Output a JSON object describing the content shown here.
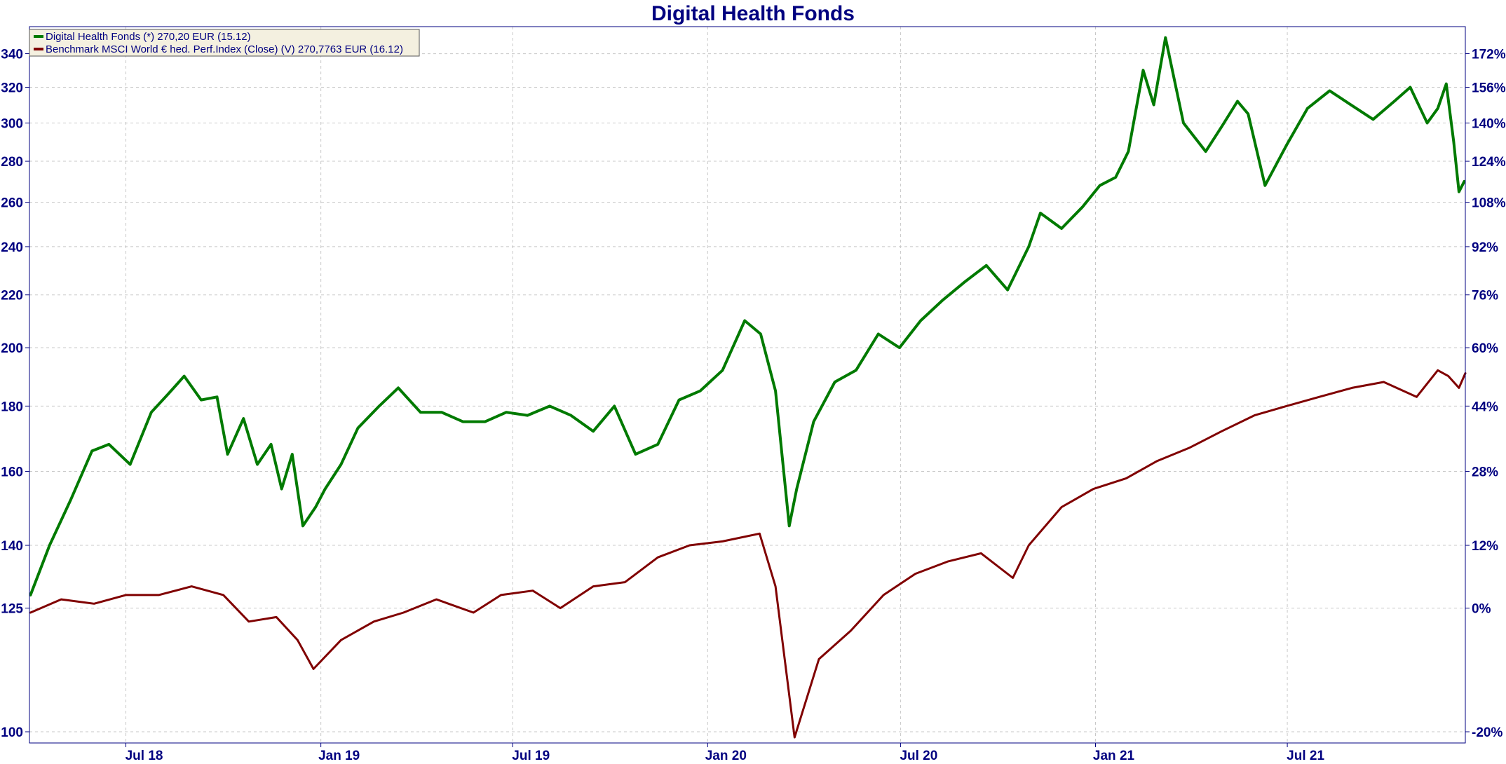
{
  "chart_data": {
    "type": "line",
    "title": "Digital Health Fonds",
    "xlabel": "",
    "ylabel": "",
    "grid": true,
    "legend_position": "top-left",
    "x_range": [
      "2018-04-01",
      "2021-12-16"
    ],
    "ylim": [
      98,
      357
    ],
    "y_scale": "log",
    "y_ticks": [
      100,
      125,
      140,
      160,
      180,
      200,
      220,
      240,
      260,
      280,
      300,
      320,
      340
    ],
    "y_tick_labels": [
      "100",
      "125",
      "140",
      "160",
      "180",
      "200",
      "220",
      "240",
      "260",
      "280",
      "300",
      "320",
      "340"
    ],
    "y2_ticks": [
      -20,
      0,
      12,
      28,
      44,
      60,
      76,
      92,
      108,
      124,
      140,
      156,
      172
    ],
    "y2_tick_labels": [
      "-20%",
      "0%",
      "12%",
      "28%",
      "44%",
      "60%",
      "76%",
      "92%",
      "108%",
      "124%",
      "140%",
      "156%",
      "172%"
    ],
    "x_ticks": [
      "2018-07-01",
      "2019-01-01",
      "2019-07-01",
      "2020-01-01",
      "2020-07-01",
      "2021-01-01",
      "2021-07-01"
    ],
    "x_tick_labels": [
      "Jul 18",
      "Jan 19",
      "Jul 19",
      "Jan 20",
      "Jul 20",
      "Jan 21",
      "Jul 21"
    ],
    "colors": {
      "fund": "#007a00",
      "benchmark": "#800000",
      "axis": "#000080",
      "grid": "#c8c8c8"
    },
    "series": [
      {
        "name": "Digital Health Fonds (*) 270,20 EUR (15.12)",
        "color": "#007a00",
        "x": [
          "2018-04-02",
          "2018-04-20",
          "2018-05-10",
          "2018-05-30",
          "2018-06-15",
          "2018-07-05",
          "2018-07-25",
          "2018-08-10",
          "2018-08-25",
          "2018-09-10",
          "2018-09-25",
          "2018-10-05",
          "2018-10-20",
          "2018-11-02",
          "2018-11-15",
          "2018-11-25",
          "2018-12-05",
          "2018-12-15",
          "2018-12-27",
          "2019-01-05",
          "2019-01-20",
          "2019-02-05",
          "2019-02-25",
          "2019-03-15",
          "2019-04-05",
          "2019-04-25",
          "2019-05-15",
          "2019-06-05",
          "2019-06-25",
          "2019-07-15",
          "2019-08-05",
          "2019-08-25",
          "2019-09-15",
          "2019-10-05",
          "2019-10-25",
          "2019-11-15",
          "2019-12-05",
          "2019-12-25",
          "2020-01-15",
          "2020-02-05",
          "2020-02-20",
          "2020-03-05",
          "2020-03-18",
          "2020-03-25",
          "2020-04-10",
          "2020-04-30",
          "2020-05-20",
          "2020-06-10",
          "2020-06-30",
          "2020-07-20",
          "2020-08-10",
          "2020-08-30",
          "2020-09-20",
          "2020-10-10",
          "2020-10-30",
          "2020-11-10",
          "2020-11-30",
          "2020-12-20",
          "2021-01-05",
          "2021-01-20",
          "2021-02-01",
          "2021-02-15",
          "2021-02-25",
          "2021-03-08",
          "2021-03-25",
          "2021-04-15",
          "2021-04-30",
          "2021-05-15",
          "2021-05-25",
          "2021-06-10",
          "2021-06-30",
          "2021-07-20",
          "2021-08-10",
          "2021-08-30",
          "2021-09-20",
          "2021-10-10",
          "2021-10-25",
          "2021-11-10",
          "2021-11-20",
          "2021-11-28",
          "2021-12-05",
          "2021-12-10",
          "2021-12-15"
        ],
        "values": [
          128,
          140,
          152,
          166,
          168,
          162,
          178,
          184,
          190,
          182,
          183,
          165,
          176,
          162,
          168,
          155,
          165,
          145,
          150,
          155,
          162,
          173,
          180,
          186,
          178,
          178,
          175,
          175,
          178,
          177,
          180,
          177,
          172,
          180,
          165,
          168,
          182,
          185,
          192,
          210,
          205,
          185,
          145,
          155,
          175,
          188,
          192,
          205,
          200,
          210,
          218,
          225,
          232,
          222,
          240,
          255,
          248,
          258,
          268,
          272,
          285,
          330,
          310,
          350,
          300,
          285,
          298,
          312,
          305,
          268,
          288,
          308,
          318,
          310,
          302,
          312,
          320,
          300,
          308,
          322,
          290,
          265,
          270
        ]
      },
      {
        "name": "Benchmark MSCI World € hed. Perf.Index (Close) (V) 270,7763 EUR (16.12)",
        "color": "#800000",
        "x": [
          "2018-04-02",
          "2018-05-01",
          "2018-06-01",
          "2018-07-01",
          "2018-08-01",
          "2018-09-01",
          "2018-10-01",
          "2018-10-25",
          "2018-11-20",
          "2018-12-10",
          "2018-12-25",
          "2019-01-20",
          "2019-02-20",
          "2019-03-20",
          "2019-04-20",
          "2019-05-25",
          "2019-06-20",
          "2019-07-20",
          "2019-08-15",
          "2019-09-15",
          "2019-10-15",
          "2019-11-15",
          "2019-12-15",
          "2020-01-15",
          "2020-02-19",
          "2020-03-05",
          "2020-03-23",
          "2020-04-15",
          "2020-05-15",
          "2020-06-15",
          "2020-07-15",
          "2020-08-15",
          "2020-09-15",
          "2020-10-15",
          "2020-10-30",
          "2020-11-30",
          "2020-12-30",
          "2021-01-30",
          "2021-02-28",
          "2021-03-31",
          "2021-04-30",
          "2021-05-31",
          "2021-06-30",
          "2021-07-31",
          "2021-08-31",
          "2021-09-30",
          "2021-10-31",
          "2021-11-20",
          "2021-11-30",
          "2021-12-10",
          "2021-12-16"
        ],
        "values": [
          124,
          127,
          126,
          128,
          128,
          130,
          128,
          122,
          123,
          118,
          112,
          118,
          122,
          124,
          127,
          124,
          128,
          129,
          125,
          130,
          131,
          137,
          140,
          141,
          143,
          130,
          99,
          114,
          120,
          128,
          133,
          136,
          138,
          132,
          140,
          150,
          155,
          158,
          163,
          167,
          172,
          177,
          180,
          183,
          186,
          188,
          183,
          192,
          190,
          186,
          191
        ]
      }
    ]
  }
}
